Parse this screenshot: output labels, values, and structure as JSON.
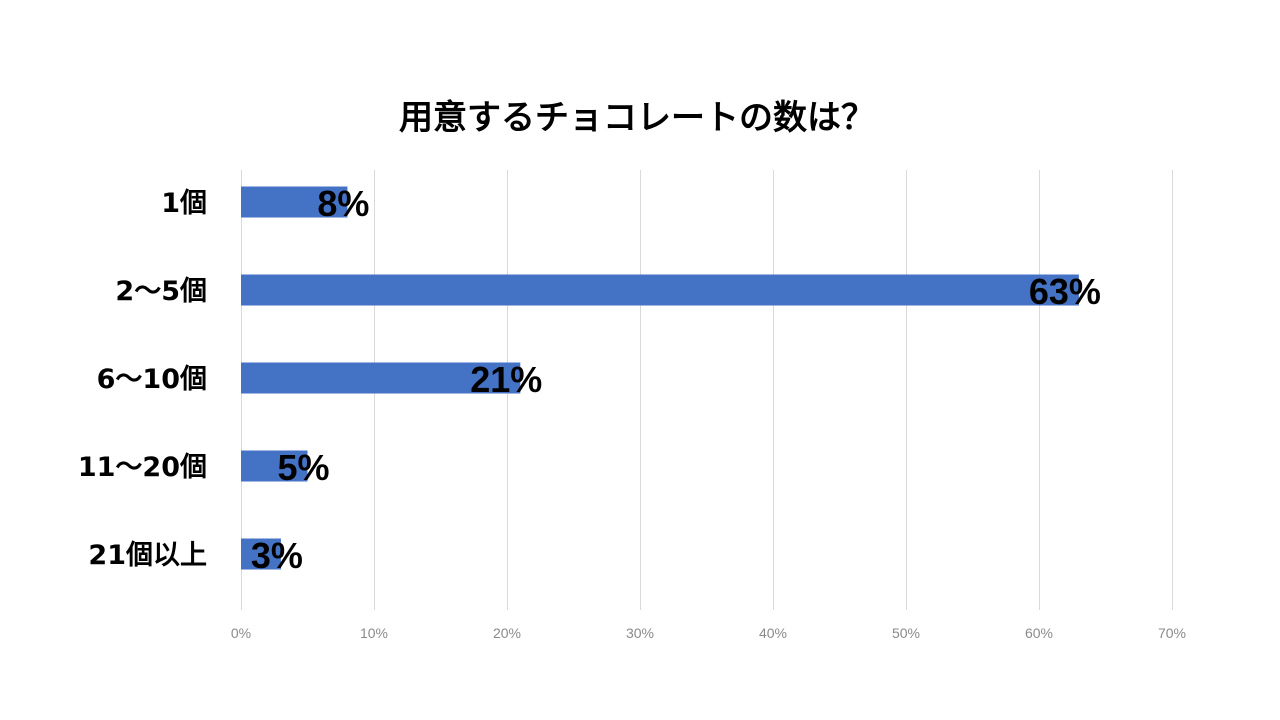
{
  "chart_data": {
    "type": "bar",
    "orientation": "horizontal",
    "title": "用意するチョコレートの数は？",
    "categories": [
      "1個",
      "2〜5個",
      "6〜10個",
      "11〜20個",
      "21個以上"
    ],
    "values": [
      8,
      63,
      21,
      5,
      3
    ],
    "data_labels": [
      "8%",
      "63%",
      "21%",
      "5%",
      "3%"
    ],
    "xlim": [
      0,
      70
    ],
    "xticks": [
      0,
      10,
      20,
      30,
      40,
      50,
      60,
      70
    ],
    "xtick_labels": [
      "0%",
      "10%",
      "20%",
      "30%",
      "40%",
      "50%",
      "60%",
      "70%"
    ],
    "xlabel": "",
    "ylabel": "",
    "grid": "vertical",
    "legend": "none",
    "bar_color": "#4472C4"
  }
}
